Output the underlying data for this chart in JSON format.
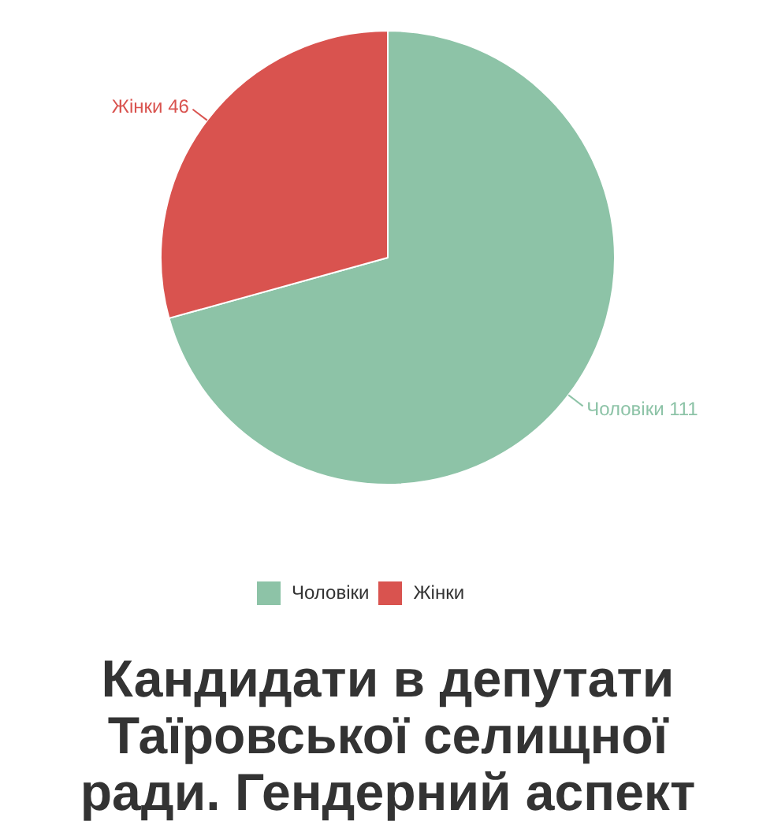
{
  "chart_data": {
    "type": "pie",
    "title": "Кандидати в депутати Таїровської селищної ради. Гендерний аспект",
    "categories": [
      "Чоловіки",
      "Жінки"
    ],
    "values": [
      111,
      46
    ],
    "colors": [
      "#8dc3a7",
      "#d9534f"
    ],
    "value_labels": [
      "Чоловіки 111",
      "Жінки 46"
    ],
    "legend": "bottom"
  }
}
